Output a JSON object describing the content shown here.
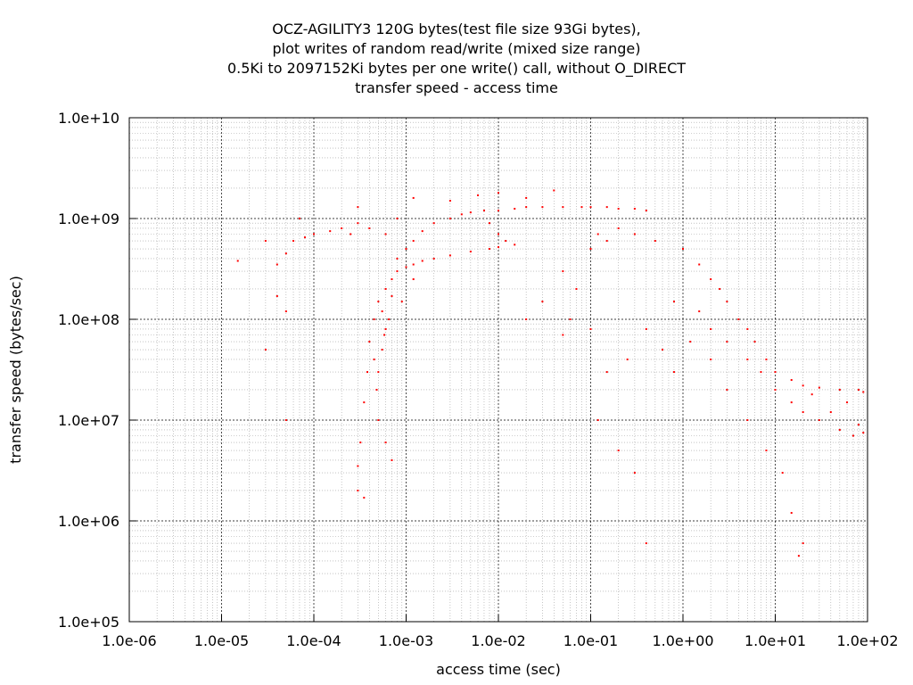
{
  "chart_data": {
    "type": "scatter",
    "title_lines": [
      "OCZ-AGILITY3 120G bytes(test file size 93Gi bytes),",
      "plot writes of random read/write (mixed size range)",
      "0.5Ki to 2097152Ki bytes per one write() call, without O_DIRECT",
      "transfer speed - access time"
    ],
    "xlabel": "access time (sec)",
    "ylabel": "transfer speed (bytes/sec)",
    "x_scale": "log",
    "y_scale": "log",
    "xlim": [
      1e-06,
      100
    ],
    "ylim": [
      100000,
      10000000000
    ],
    "x_ticks": [
      {
        "value": 1e-06,
        "label": "1.0e-06"
      },
      {
        "value": 1e-05,
        "label": "1.0e-05"
      },
      {
        "value": 0.0001,
        "label": "1.0e-04"
      },
      {
        "value": 0.001,
        "label": "1.0e-03"
      },
      {
        "value": 0.01,
        "label": "1.0e-02"
      },
      {
        "value": 0.1,
        "label": "1.0e-01"
      },
      {
        "value": 1,
        "label": "1.0e+00"
      },
      {
        "value": 10,
        "label": "1.0e+01"
      },
      {
        "value": 100,
        "label": "1.0e+02"
      }
    ],
    "y_ticks": [
      {
        "value": 100000,
        "label": "1.0e+05"
      },
      {
        "value": 1000000,
        "label": "1.0e+06"
      },
      {
        "value": 10000000,
        "label": "1.0e+07"
      },
      {
        "value": 100000000,
        "label": "1.0e+08"
      },
      {
        "value": 1000000000,
        "label": "1.0e+09"
      },
      {
        "value": 10000000000,
        "label": "1.0e+10"
      }
    ],
    "grid": true,
    "series": [
      {
        "color": "#ff0000",
        "points": [
          [
            0.0003,
            2000000
          ],
          [
            0.00035,
            1700000
          ],
          [
            0.0003,
            3500000
          ],
          [
            0.00032,
            6000000
          ],
          [
            0.00035,
            15000000
          ],
          [
            0.00038,
            30000000
          ],
          [
            0.0004,
            60000000
          ],
          [
            0.00045,
            100000000
          ],
          [
            0.0005,
            150000000
          ],
          [
            0.00055,
            120000000
          ],
          [
            0.0006,
            80000000
          ],
          [
            0.00055,
            50000000
          ],
          [
            0.0005,
            30000000
          ],
          [
            0.00048,
            20000000
          ],
          [
            0.0005,
            10000000
          ],
          [
            0.0006,
            6000000
          ],
          [
            0.0007,
            4000000
          ],
          [
            0.00045,
            40000000
          ],
          [
            0.0006,
            200000000
          ],
          [
            0.0007,
            250000000
          ],
          [
            0.0008,
            300000000
          ],
          [
            0.001,
            330000000
          ],
          [
            0.0012,
            350000000
          ],
          [
            0.0015,
            380000000
          ],
          [
            0.002,
            400000000
          ],
          [
            0.003,
            430000000
          ],
          [
            0.005,
            470000000
          ],
          [
            0.008,
            500000000
          ],
          [
            0.01,
            520000000
          ],
          [
            0.015,
            550000000
          ],
          [
            0.0008,
            400000000
          ],
          [
            0.0009,
            150000000
          ],
          [
            0.0012,
            250000000
          ],
          [
            0.0007,
            170000000
          ],
          [
            0.00065,
            100000000
          ],
          [
            0.00058,
            70000000
          ],
          [
            0.001,
            500000000
          ],
          [
            0.0012,
            600000000
          ],
          [
            0.0015,
            750000000
          ],
          [
            0.002,
            900000000
          ],
          [
            0.003,
            1000000000
          ],
          [
            0.004,
            1100000000
          ],
          [
            0.005,
            1150000000
          ],
          [
            0.007,
            1200000000
          ],
          [
            0.01,
            1200000000
          ],
          [
            0.015,
            1250000000
          ],
          [
            0.02,
            1300000000
          ],
          [
            0.03,
            1300000000
          ],
          [
            0.05,
            1300000000
          ],
          [
            0.08,
            1300000000
          ],
          [
            0.1,
            1300000000
          ],
          [
            0.15,
            1300000000
          ],
          [
            0.2,
            1250000000
          ],
          [
            0.3,
            1250000000
          ],
          [
            0.4,
            1200000000
          ],
          [
            0.008,
            900000000
          ],
          [
            0.01,
            700000000
          ],
          [
            0.012,
            600000000
          ],
          [
            0.003,
            1500000000
          ],
          [
            0.006,
            1700000000
          ],
          [
            0.01,
            1800000000
          ],
          [
            0.02,
            1600000000
          ],
          [
            0.04,
            1900000000
          ],
          [
            0.0012,
            1600000000
          ],
          [
            0.0008,
            1000000000
          ],
          [
            0.0006,
            700000000
          ],
          [
            0.0004,
            800000000
          ],
          [
            0.0003,
            900000000
          ],
          [
            0.00025,
            700000000
          ],
          [
            0.0002,
            800000000
          ],
          [
            0.00015,
            750000000
          ],
          [
            0.0001,
            700000000
          ],
          [
            8e-05,
            650000000
          ],
          [
            6e-05,
            600000000
          ],
          [
            5e-05,
            450000000
          ],
          [
            4e-05,
            350000000
          ],
          [
            3e-05,
            600000000
          ],
          [
            1.5e-05,
            380000000
          ],
          [
            7e-05,
            1000000000
          ],
          [
            0.0003,
            1300000000
          ],
          [
            4e-05,
            170000000
          ],
          [
            5e-05,
            120000000
          ],
          [
            3e-05,
            50000000
          ],
          [
            5e-05,
            10000000
          ],
          [
            0.05,
            300000000
          ],
          [
            0.07,
            200000000
          ],
          [
            0.1,
            500000000
          ],
          [
            0.12,
            700000000
          ],
          [
            0.15,
            600000000
          ],
          [
            0.2,
            800000000
          ],
          [
            0.3,
            700000000
          ],
          [
            0.5,
            600000000
          ],
          [
            0.06,
            100000000
          ],
          [
            0.1,
            80000000
          ],
          [
            0.15,
            30000000
          ],
          [
            0.12,
            10000000
          ],
          [
            0.2,
            5000000
          ],
          [
            0.3,
            3000000
          ],
          [
            0.4,
            600000
          ],
          [
            0.25,
            40000000
          ],
          [
            0.4,
            80000000
          ],
          [
            0.03,
            150000000
          ],
          [
            0.05,
            70000000
          ],
          [
            0.02,
            100000000
          ],
          [
            0.6,
            50000000
          ],
          [
            0.8,
            150000000
          ],
          [
            1.0,
            500000000
          ],
          [
            1.5,
            350000000
          ],
          [
            2,
            250000000
          ],
          [
            2.5,
            200000000
          ],
          [
            3,
            150000000
          ],
          [
            4,
            100000000
          ],
          [
            5,
            80000000
          ],
          [
            6,
            60000000
          ],
          [
            8,
            40000000
          ],
          [
            10,
            30000000
          ],
          [
            15,
            25000000
          ],
          [
            20,
            22000000
          ],
          [
            30,
            21000000
          ],
          [
            50,
            20000000
          ],
          [
            80,
            20000000
          ],
          [
            90,
            19000000
          ],
          [
            1.5,
            120000000
          ],
          [
            2,
            80000000
          ],
          [
            3,
            60000000
          ],
          [
            5,
            40000000
          ],
          [
            7,
            30000000
          ],
          [
            10,
            20000000
          ],
          [
            15,
            15000000
          ],
          [
            20,
            12000000
          ],
          [
            30,
            10000000
          ],
          [
            50,
            8000000
          ],
          [
            70,
            7000000
          ],
          [
            90,
            7500000
          ],
          [
            5,
            10000000
          ],
          [
            8,
            5000000
          ],
          [
            12,
            3000000
          ],
          [
            15,
            1200000
          ],
          [
            20,
            600000
          ],
          [
            18,
            450000
          ],
          [
            3,
            20000000
          ],
          [
            2,
            40000000
          ],
          [
            1.2,
            60000000
          ],
          [
            0.8,
            30000000
          ],
          [
            40,
            12000000
          ],
          [
            60,
            15000000
          ],
          [
            80,
            9000000
          ],
          [
            25,
            18000000
          ]
        ]
      }
    ]
  }
}
